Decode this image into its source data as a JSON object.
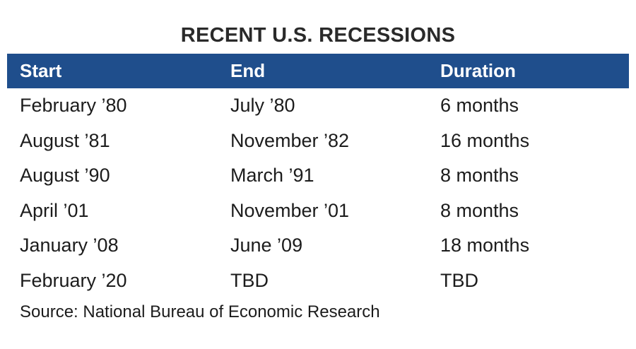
{
  "chart_data": {
    "type": "table",
    "title": "RECENT U.S. RECESSIONS",
    "columns": [
      "Start",
      "End",
      "Duration"
    ],
    "rows": [
      [
        "February ’80",
        "July ’80",
        "6 months"
      ],
      [
        "August ’81",
        "November ’82",
        "16 months"
      ],
      [
        "August ’90",
        "March ’91",
        "8 months"
      ],
      [
        "April ’01",
        "November ’01",
        "8 months"
      ],
      [
        "January ’08",
        "June ’09",
        "18 months"
      ],
      [
        "February ’20",
        "TBD",
        "TBD"
      ]
    ],
    "source": "Source: National Bureau of Economic Research"
  },
  "colors": {
    "header_background": "#1f4e8c",
    "header_text": "#ffffff"
  }
}
